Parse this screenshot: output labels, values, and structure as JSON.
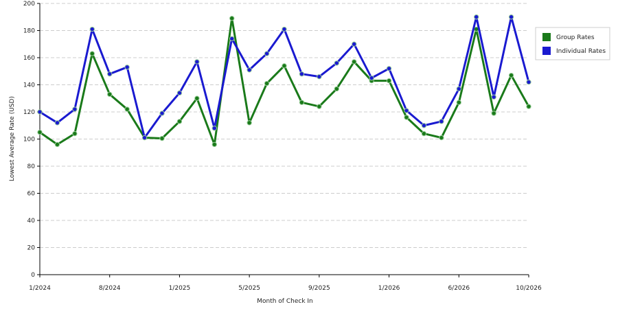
{
  "chart_data": {
    "type": "line",
    "x_label": "Month of Check In",
    "y_label": "Lowest Average Rate (USD)",
    "categories": [
      "1/2024",
      null,
      null,
      null,
      "8/2024",
      null,
      null,
      null,
      "1/2025",
      null,
      null,
      null,
      "5/2025",
      null,
      null,
      null,
      "9/2025",
      null,
      null,
      null,
      "1/2026",
      null,
      null,
      null,
      "6/2026",
      null,
      null,
      null,
      "10/2026"
    ],
    "series": [
      {
        "name": "Group Rates",
        "color": "#1a7a1a",
        "values": [
          105,
          96,
          104,
          163,
          133,
          122,
          101,
          100.5,
          113,
          130,
          96,
          189,
          112,
          141,
          154,
          127,
          124,
          137,
          157,
          143,
          143,
          116,
          104,
          101,
          127,
          181,
          119,
          147,
          124
        ]
      },
      {
        "name": "Individual Rates",
        "color": "#1a1ad0",
        "values": [
          120,
          112,
          122,
          181,
          148,
          153,
          101,
          119,
          134,
          157,
          108,
          174,
          151,
          163,
          181,
          148,
          146,
          156,
          170,
          145,
          152,
          121,
          110,
          113,
          137,
          190,
          131,
          190,
          142
        ]
      }
    ],
    "ylim": [
      0,
      200
    ],
    "yticks": [
      0,
      20,
      40,
      60,
      80,
      100,
      120,
      140,
      160,
      180,
      200
    ],
    "grid": true
  }
}
